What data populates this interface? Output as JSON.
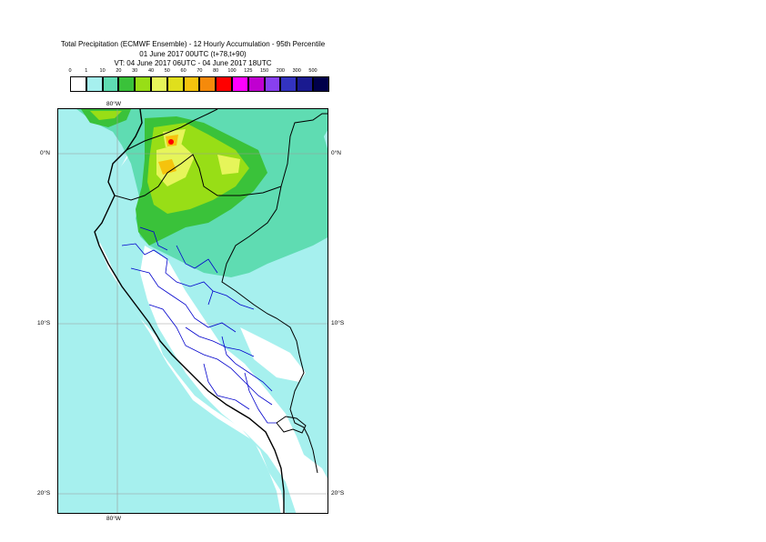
{
  "header": {
    "line1": "Total Precipitation (ECMWF Ensemble) - 12 Hourly Accumulation - 95th Percentile",
    "line2": "01 June 2017 00UTC (t+78,t+90)",
    "line3": "VT: 04 June 2017 06UTC - 04 June 2017 18UTC"
  },
  "legend": {
    "labels": [
      "0",
      "1",
      "10",
      "20",
      "30",
      "40",
      "50",
      "60",
      "70",
      "80",
      "100",
      "125",
      "150",
      "200",
      "300",
      "500"
    ],
    "colors": [
      "#ffffff",
      "#a6f0ee",
      "#5fdcb2",
      "#3ac23a",
      "#98de16",
      "#e6f55a",
      "#e0df1c",
      "#f5c30d",
      "#f58a0b",
      "#ff0000",
      "#ff00ff",
      "#c000d0",
      "#8840f0",
      "#3333c0",
      "#1a1a90",
      "#00004a"
    ]
  },
  "map": {
    "gridlines": {
      "lon_top": "80°W",
      "lon_bottom": "80°W",
      "lat_left": [
        "0°N",
        "10°S",
        "20°S"
      ],
      "lat_right": [
        "0°N",
        "10°S",
        "20°S"
      ]
    },
    "colors": {
      "ocean_light": "#a6f0ee",
      "mid_green": "#5fdcb2",
      "bright_green": "#3ac23a",
      "lime": "#98de16",
      "yellow": "#e6f55a",
      "orange": "#f5c30d",
      "red": "#ff0000",
      "country_border": "#000000",
      "admin_border": "#0000cc"
    }
  }
}
